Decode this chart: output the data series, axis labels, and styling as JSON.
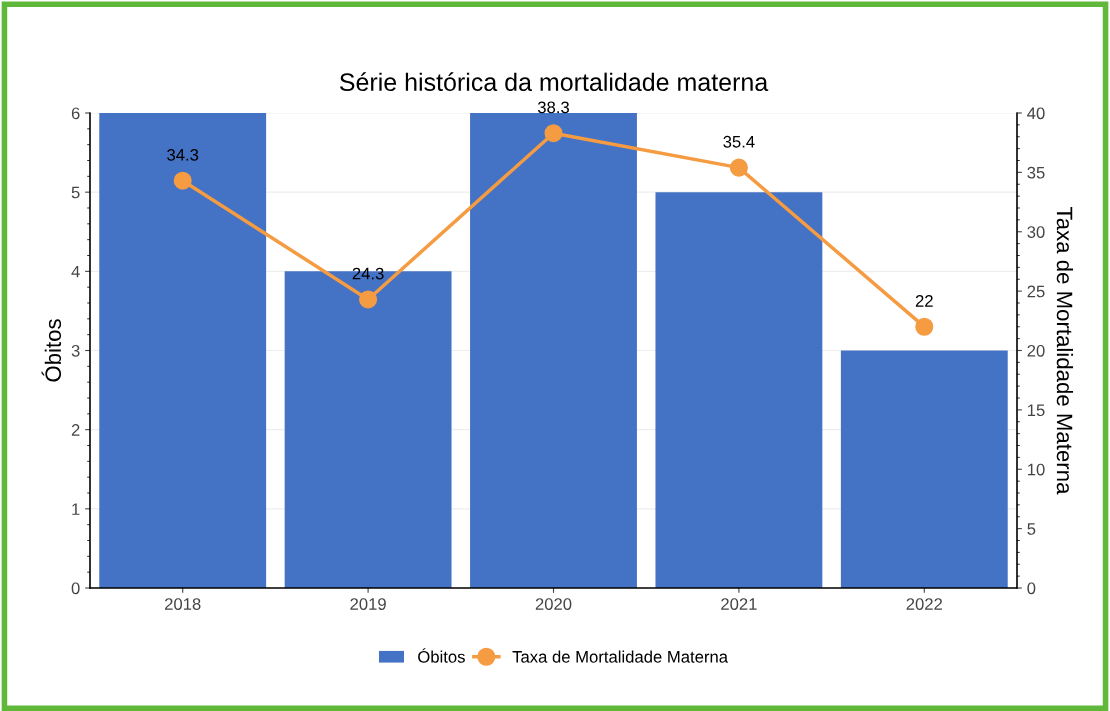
{
  "chart_data": {
    "type": "bar",
    "title": "Série histórica da mortalidade materna",
    "ylabel": "Óbitos",
    "y2label": "Taxa de Mortalidade Materna",
    "categories": [
      "2018",
      "2019",
      "2020",
      "2021",
      "2022"
    ],
    "series": [
      {
        "name": "Óbitos",
        "color": "#4472c4",
        "values": [
          6,
          4,
          6,
          5,
          3
        ]
      },
      {
        "name": "Taxa de Mortalidade Materna",
        "type": "line",
        "axis": "y2",
        "color": "#f59b42",
        "marker": "circle",
        "values": [
          34.3,
          24.3,
          38.3,
          35.4,
          22
        ],
        "value_labels": [
          "34.3",
          "24.3",
          "38.3",
          "35.4",
          "22"
        ]
      }
    ],
    "ylim": [
      0,
      6
    ],
    "yticks": [
      0,
      1,
      2,
      3,
      4,
      5,
      6
    ],
    "y2lim": [
      0,
      40
    ],
    "y2ticks": [
      0,
      5,
      10,
      15,
      20,
      25,
      30,
      35,
      40
    ],
    "grid": "y",
    "legend": "bottom"
  }
}
